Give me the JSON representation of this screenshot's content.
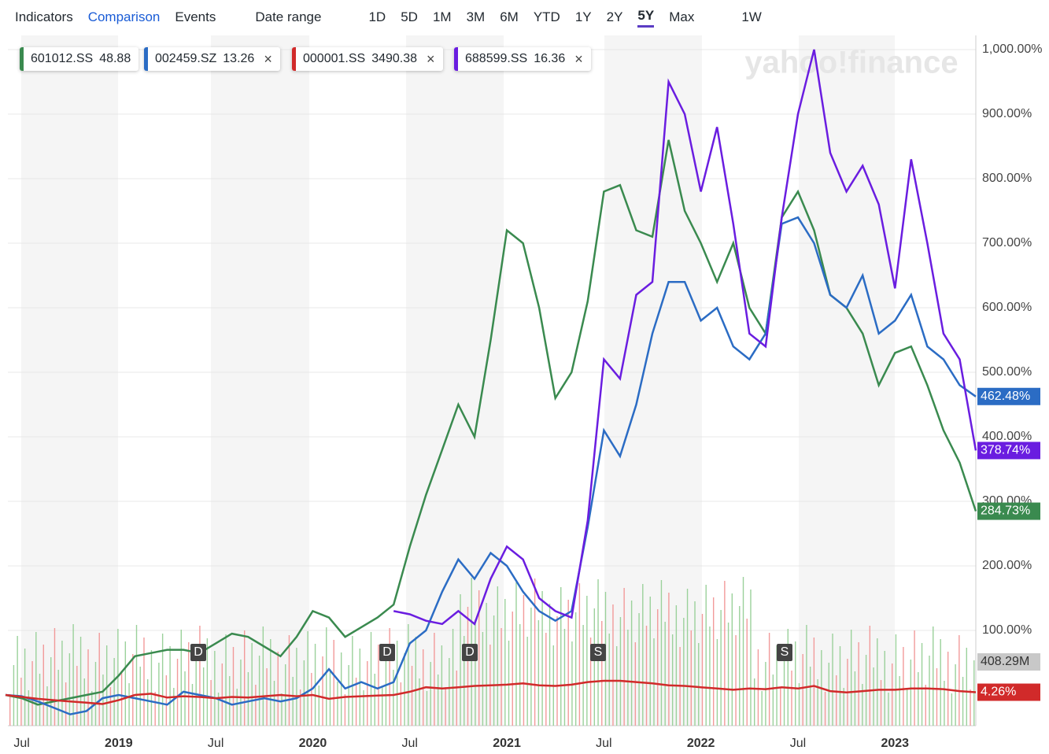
{
  "toolbar": {
    "items": [
      "Indicators",
      "Comparison",
      "Events",
      "Date range",
      "1D",
      "5D",
      "1M",
      "3M",
      "6M",
      "YTD",
      "1Y",
      "2Y",
      "5Y",
      "Max",
      "1W"
    ],
    "active": "5Y"
  },
  "watermark": "yahoo!finance",
  "events": [
    "D",
    "D",
    "D",
    "S",
    "S"
  ],
  "volume_label": "408.29M",
  "chart_data": {
    "type": "line",
    "categories": [
      null,
      "Jul",
      null,
      null,
      null,
      null,
      null,
      "2019",
      null,
      null,
      null,
      null,
      null,
      "Jul",
      null,
      null,
      null,
      null,
      null,
      "2020",
      null,
      null,
      null,
      null,
      null,
      "Jul",
      null,
      null,
      null,
      null,
      null,
      "2021",
      null,
      null,
      null,
      null,
      null,
      "Jul",
      null,
      null,
      null,
      null,
      null,
      "2022",
      null,
      null,
      null,
      null,
      null,
      "Jul",
      null,
      null,
      null,
      null,
      null,
      "2023",
      null,
      null,
      null,
      null,
      null
    ],
    "ylim": [
      -20,
      1030
    ],
    "yticks": [
      {
        "value": 100,
        "label": "100.00%"
      },
      {
        "value": 200,
        "label": "200.00%"
      },
      {
        "value": 300,
        "label": "300.00%"
      },
      {
        "value": 400,
        "label": "400.00%"
      },
      {
        "value": 500,
        "label": "500.00%"
      },
      {
        "value": 600,
        "label": "600.00%"
      },
      {
        "value": 700,
        "label": "700.00%"
      },
      {
        "value": 800,
        "label": "800.00%"
      },
      {
        "value": 900,
        "label": "900.00%"
      },
      {
        "value": 1000,
        "label": "1,000.00%"
      }
    ],
    "grid": true,
    "series": [
      {
        "name": "601012.SS",
        "price": 48.88,
        "color": "#3a8a4f",
        "last_label": "284.73%",
        "values": [
          0,
          -5,
          -15,
          -10,
          -5,
          0,
          5,
          30,
          60,
          65,
          70,
          70,
          65,
          80,
          95,
          90,
          75,
          60,
          90,
          130,
          120,
          90,
          105,
          120,
          140,
          230,
          310,
          380,
          450,
          400,
          550,
          720,
          700,
          600,
          460,
          500,
          610,
          780,
          790,
          720,
          710,
          860,
          750,
          700,
          640,
          700,
          600,
          560,
          740,
          780,
          720,
          620,
          600,
          560,
          480,
          530,
          540,
          480,
          410,
          360,
          284.73
        ]
      },
      {
        "name": "002459.SZ",
        "price": 13.26,
        "color": "#2b6cc4",
        "last_label": "462.48%",
        "values": [
          0,
          -2,
          -10,
          -20,
          -30,
          -25,
          -5,
          0,
          -5,
          -10,
          -15,
          5,
          0,
          -5,
          -15,
          -10,
          -5,
          -10,
          -5,
          10,
          40,
          10,
          20,
          10,
          20,
          80,
          100,
          160,
          210,
          180,
          220,
          200,
          160,
          130,
          115,
          130,
          260,
          410,
          370,
          450,
          560,
          640,
          640,
          580,
          600,
          540,
          520,
          560,
          730,
          740,
          700,
          620,
          600,
          650,
          560,
          580,
          620,
          540,
          520,
          480,
          462.48
        ]
      },
      {
        "name": "000001.SS",
        "price": 3490.38,
        "color": "#d12a2a",
        "last_label": "4.26%",
        "values": [
          0,
          -3,
          -6,
          -8,
          -10,
          -12,
          -14,
          -8,
          0,
          2,
          -4,
          -2,
          -3,
          -5,
          -3,
          -4,
          -2,
          0,
          -2,
          0,
          -6,
          -3,
          -2,
          -1,
          0,
          5,
          12,
          10,
          12,
          14,
          15,
          16,
          18,
          15,
          14,
          16,
          20,
          22,
          22,
          20,
          18,
          15,
          14,
          12,
          10,
          8,
          10,
          9,
          12,
          10,
          14,
          6,
          4,
          6,
          8,
          8,
          10,
          10,
          9,
          6,
          4.26
        ]
      },
      {
        "name": "688599.SS",
        "price": 16.36,
        "color": "#6a1de0",
        "last_label": "378.74%",
        "values": [
          null,
          null,
          null,
          null,
          null,
          null,
          null,
          null,
          null,
          null,
          null,
          null,
          null,
          null,
          null,
          null,
          null,
          null,
          null,
          null,
          null,
          null,
          null,
          null,
          130,
          125,
          115,
          110,
          130,
          110,
          180,
          230,
          210,
          150,
          130,
          120,
          270,
          520,
          490,
          620,
          640,
          950,
          900,
          780,
          880,
          730,
          560,
          540,
          740,
          900,
          1000,
          840,
          780,
          820,
          760,
          630,
          830,
          700,
          560,
          520,
          378.74
        ]
      }
    ]
  }
}
